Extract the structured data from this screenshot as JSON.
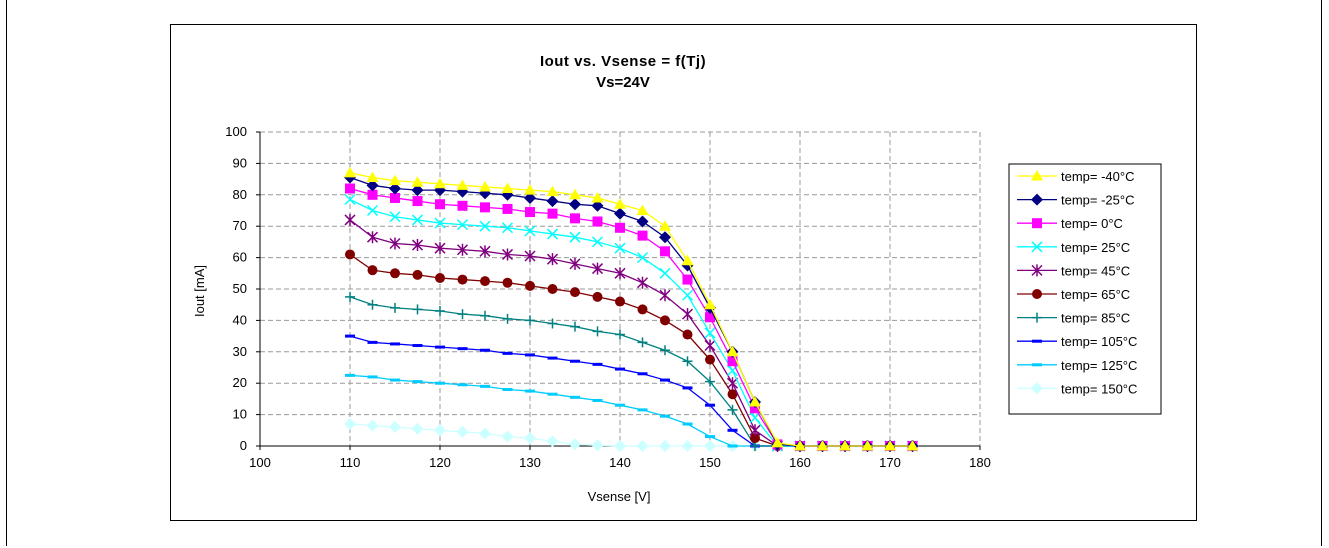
{
  "chart_data": {
    "type": "line",
    "title": "Iout vs. Vsense = f(Tj)",
    "subtitle": "Vs=24V",
    "xlabel": "Vsense [V]",
    "ylabel": "Iout [mA]",
    "xlim": [
      100,
      180
    ],
    "ylim": [
      0,
      100
    ],
    "xticks": [
      "100",
      "110",
      "120",
      "130",
      "140",
      "150",
      "160",
      "170",
      "180"
    ],
    "yticks": [
      "0",
      "10",
      "20",
      "30",
      "40",
      "50",
      "60",
      "70",
      "80",
      "90",
      "100"
    ],
    "grid": true,
    "legend_position": "right",
    "x": [
      110,
      112.5,
      115,
      117.5,
      120,
      122.5,
      125,
      127.5,
      130,
      132.5,
      135,
      137.5,
      140,
      142.5,
      145,
      147.5,
      150,
      152.5,
      155,
      157.5,
      160,
      162.5,
      165,
      167.5,
      170,
      172.5
    ],
    "series": [
      {
        "name": "temp= -40°C",
        "color": "#ffff00",
        "marker": "triangle",
        "values": [
          87,
          85.5,
          84.5,
          84,
          83.5,
          83,
          82.5,
          82,
          81.5,
          81,
          80,
          79,
          77,
          75,
          70,
          59,
          45,
          30,
          14,
          1,
          0,
          0,
          0,
          0,
          0,
          0
        ]
      },
      {
        "name": "temp= -25°C",
        "color": "#000080",
        "marker": "diamond",
        "values": [
          85.5,
          83,
          82,
          81.5,
          81.5,
          81,
          80.5,
          80,
          79,
          78,
          77,
          76.5,
          74,
          71.5,
          66.5,
          57.5,
          44,
          30,
          14,
          0.5,
          0,
          0,
          0,
          0,
          0,
          0
        ]
      },
      {
        "name": "temp= 0°C",
        "color": "#ff00ff",
        "marker": "square",
        "values": [
          82,
          80,
          79,
          78,
          77,
          76.5,
          76,
          75.5,
          74.5,
          74,
          72.5,
          71.5,
          69.5,
          67,
          62,
          53,
          41,
          27,
          12,
          0.5,
          0,
          0,
          0,
          0,
          0,
          0
        ]
      },
      {
        "name": "temp= 25°C",
        "color": "#00ffff",
        "marker": "x",
        "values": [
          78.5,
          75,
          73,
          72,
          71,
          70.5,
          70,
          69.5,
          68.5,
          67.5,
          66.5,
          65,
          63,
          60,
          55,
          48,
          36,
          24,
          9,
          0,
          0,
          0,
          0,
          0,
          0,
          0
        ]
      },
      {
        "name": "temp= 45°C",
        "color": "#800080",
        "marker": "star",
        "values": [
          72,
          66.5,
          64.5,
          64,
          63,
          62.5,
          62,
          61,
          60.5,
          59.5,
          58,
          56.5,
          55,
          52,
          48,
          42,
          32,
          20,
          5,
          0,
          0,
          0,
          0,
          0,
          0,
          0
        ]
      },
      {
        "name": "temp= 65°C",
        "color": "#800000",
        "marker": "circle",
        "values": [
          61,
          56,
          55,
          54.5,
          53.5,
          53,
          52.5,
          52,
          51,
          50,
          49,
          47.5,
          46,
          43.5,
          40,
          35.5,
          27.5,
          16.5,
          2.5,
          0,
          0,
          0,
          0,
          0,
          0,
          0
        ]
      },
      {
        "name": "temp= 85°C",
        "color": "#008080",
        "marker": "plus",
        "values": [
          47.5,
          45,
          44,
          43.5,
          43,
          42,
          41.5,
          40.5,
          40,
          39,
          38,
          36.5,
          35.5,
          33,
          30.5,
          27,
          20.5,
          11.5,
          0,
          0,
          0,
          0,
          0,
          0,
          0,
          0
        ]
      },
      {
        "name": "temp= 105°C",
        "color": "#0000ff",
        "marker": "dash",
        "values": [
          35,
          33,
          32.5,
          32,
          31.5,
          31,
          30.5,
          29.5,
          29,
          28,
          27,
          26,
          24.5,
          23,
          21,
          18.5,
          13,
          5,
          0,
          0,
          0,
          0,
          0,
          0,
          0,
          0
        ]
      },
      {
        "name": "temp= 125°C",
        "color": "#00ccff",
        "marker": "dash",
        "values": [
          22.5,
          22,
          21,
          20.5,
          20,
          19.5,
          19,
          18,
          17.5,
          16.5,
          15.5,
          14.5,
          13,
          11.5,
          9.5,
          7,
          3,
          0,
          0,
          0,
          0,
          0,
          0,
          0,
          0,
          0
        ]
      },
      {
        "name": "temp= 150°C",
        "color": "#ccffff",
        "marker": "diamond",
        "values": [
          7,
          6.5,
          6,
          5.5,
          5,
          4.5,
          4,
          3,
          2.5,
          1.5,
          0.5,
          0.2,
          0,
          0,
          0,
          0,
          0,
          0,
          0,
          0,
          0,
          0,
          0,
          0,
          0,
          0
        ]
      }
    ]
  }
}
